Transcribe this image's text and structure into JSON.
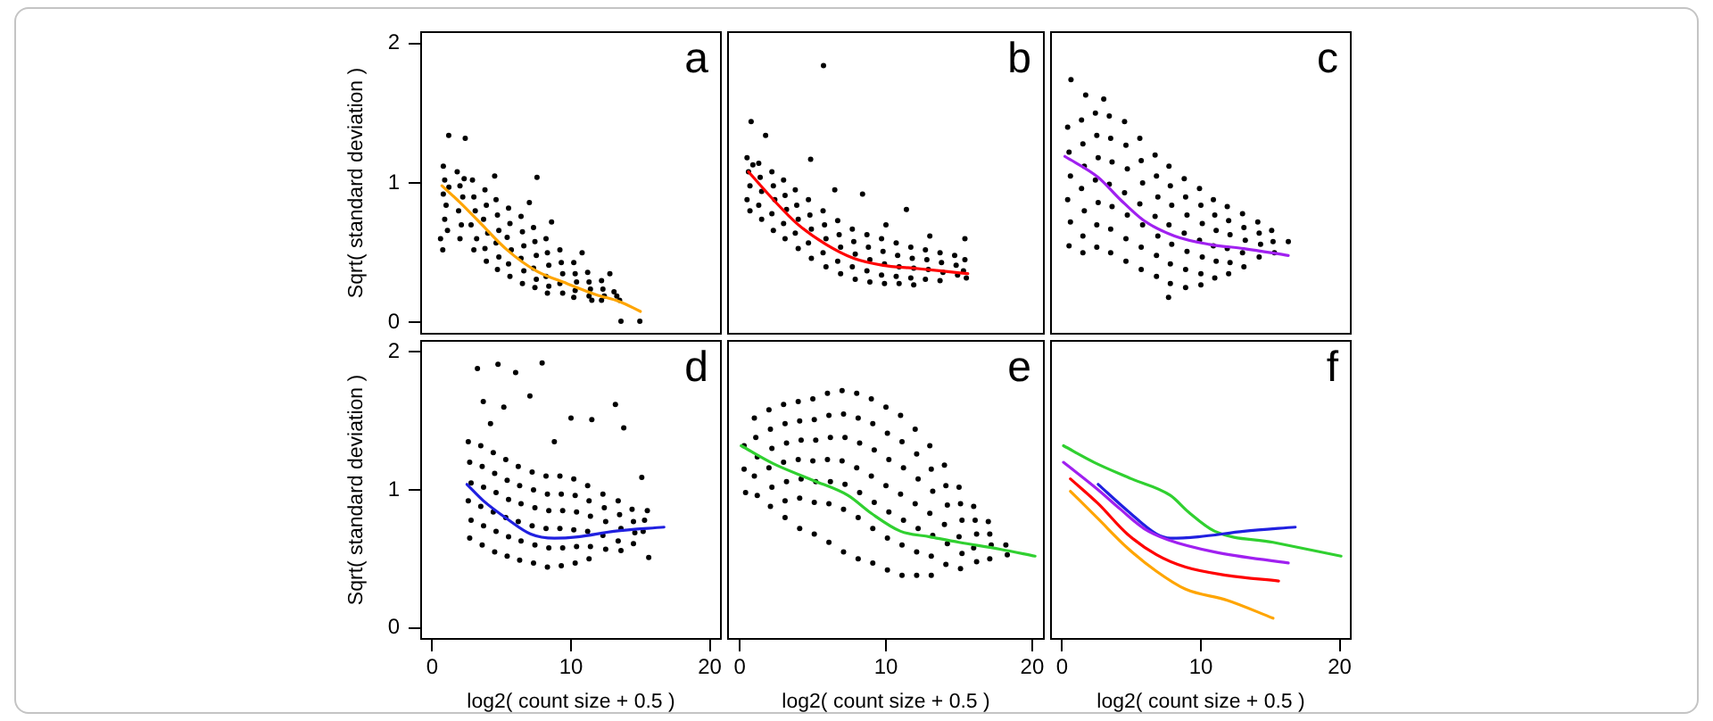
{
  "chart_data": [
    {
      "type": "scatter",
      "annotations": [
        "a"
      ],
      "ylabel": "Sqrt( standard deviation )",
      "xlim": [
        -0.8,
        20.8
      ],
      "ylim": [
        -0.08,
        2.08
      ],
      "yticks": [
        0,
        1,
        2
      ],
      "tick_labels": "y",
      "marker": "circle",
      "series": [
        {
          "color": "#000000",
          "x": [
            0.8,
            0.9,
            0.8,
            1.0,
            0.9,
            1.1,
            0.76,
            1.2,
            1.8,
            2.0,
            2.2,
            1.9,
            2.1,
            2.0,
            2.3,
            2.9,
            3.0,
            3.1,
            2.8,
            3.2,
            3.0,
            3.8,
            3.9,
            3.7,
            4.0,
            3.8,
            3.9,
            4.6,
            4.7,
            4.8,
            4.6,
            4.8,
            4.7,
            5.5,
            5.6,
            5.4,
            5.7,
            5.5,
            5.6,
            6.4,
            6.5,
            6.6,
            6.4,
            6.6,
            6.5,
            7.3,
            7.4,
            7.5,
            7.3,
            7.5,
            7.4,
            8.2,
            8.3,
            8.4,
            8.2,
            8.4,
            8.3,
            9.2,
            9.3,
            9.4,
            9.2,
            9.4,
            10.2,
            10.3,
            10.4,
            10.3,
            10.2,
            11.2,
            11.3,
            11.4,
            11.3,
            11.5,
            12.2,
            12.3,
            12.4,
            12.2,
            13.1,
            13.3,
            13.5,
            1.19,
            2.38,
            4.5,
            7.55,
            13.6,
            14.96,
            0.6,
            7.0,
            8.6,
            10.8,
            12.8
          ],
          "values": [
            1.12,
            1.02,
            0.92,
            0.84,
            0.74,
            0.66,
            0.52,
            0.97,
            1.08,
            0.98,
            0.9,
            0.8,
            0.7,
            0.6,
            1.03,
            1.02,
            0.9,
            0.8,
            0.7,
            0.6,
            0.52,
            0.95,
            0.84,
            0.74,
            0.64,
            0.53,
            0.44,
            0.88,
            0.77,
            0.66,
            0.57,
            0.47,
            0.38,
            0.82,
            0.71,
            0.61,
            0.52,
            0.42,
            0.33,
            0.76,
            0.65,
            0.55,
            0.46,
            0.37,
            0.28,
            0.68,
            0.58,
            0.48,
            0.39,
            0.31,
            0.25,
            0.6,
            0.5,
            0.41,
            0.33,
            0.26,
            0.21,
            0.52,
            0.43,
            0.35,
            0.28,
            0.21,
            0.43,
            0.35,
            0.29,
            0.23,
            0.18,
            0.36,
            0.29,
            0.24,
            0.19,
            0.16,
            0.3,
            0.24,
            0.19,
            0.16,
            0.22,
            0.19,
            0.16,
            1.34,
            1.32,
            1.05,
            1.04,
            0.01,
            0.01,
            0.6,
            0.86,
            0.72,
            0.5,
            0.35
          ]
        },
        {
          "type": "line",
          "marker": "none",
          "color": "#ffa500",
          "x": [
            0.7,
            2.0,
            3.3,
            5.4,
            7.5,
            9.7,
            11.8,
            13.5,
            15.0
          ],
          "values": [
            0.98,
            0.86,
            0.73,
            0.52,
            0.37,
            0.28,
            0.2,
            0.15,
            0.08
          ]
        }
      ]
    },
    {
      "type": "scatter",
      "annotations": [
        "b"
      ],
      "xlim": [
        -0.8,
        20.8
      ],
      "ylim": [
        -0.08,
        2.08
      ],
      "tick_labels": false,
      "marker": "circle",
      "series": [
        {
          "color": "#000000",
          "x": [
            0.5,
            0.6,
            0.7,
            0.5,
            0.7,
            0.9,
            1.3,
            1.4,
            1.5,
            1.3,
            1.5,
            2.2,
            2.3,
            2.4,
            2.2,
            2.3,
            3.0,
            3.1,
            3.2,
            3.0,
            3.1,
            3.8,
            3.9,
            4.0,
            3.8,
            4.0,
            4.7,
            4.8,
            4.9,
            4.7,
            4.9,
            5.7,
            5.8,
            5.9,
            5.7,
            5.9,
            6.7,
            6.8,
            6.9,
            6.7,
            6.9,
            7.7,
            7.8,
            7.9,
            7.7,
            7.9,
            8.7,
            8.8,
            8.9,
            8.7,
            8.9,
            9.7,
            9.8,
            9.9,
            9.7,
            9.9,
            10.7,
            10.8,
            10.9,
            10.7,
            10.9,
            11.7,
            11.8,
            11.9,
            11.7,
            11.9,
            12.7,
            12.8,
            12.9,
            12.7,
            13.7,
            13.8,
            13.9,
            13.7,
            14.7,
            14.8,
            14.9,
            15.4,
            15.3,
            15.5,
            5.73,
            0.78,
            1.77,
            4.85,
            8.4,
            11.4,
            15.4,
            6.5,
            10.0,
            13.0
          ],
          "values": [
            1.18,
            1.08,
            0.98,
            0.88,
            0.8,
            1.13,
            1.14,
            1.04,
            0.94,
            0.84,
            0.74,
            1.08,
            0.98,
            0.88,
            0.78,
            0.66,
            1.02,
            0.91,
            0.81,
            0.71,
            0.6,
            0.95,
            0.84,
            0.74,
            0.64,
            0.53,
            0.88,
            0.77,
            0.67,
            0.57,
            0.46,
            0.8,
            0.7,
            0.6,
            0.5,
            0.4,
            0.73,
            0.63,
            0.54,
            0.44,
            0.35,
            0.67,
            0.58,
            0.49,
            0.4,
            0.31,
            0.63,
            0.54,
            0.45,
            0.37,
            0.29,
            0.6,
            0.51,
            0.42,
            0.34,
            0.28,
            0.57,
            0.48,
            0.4,
            0.33,
            0.28,
            0.54,
            0.46,
            0.39,
            0.32,
            0.27,
            0.52,
            0.45,
            0.38,
            0.31,
            0.5,
            0.43,
            0.36,
            0.3,
            0.48,
            0.41,
            0.34,
            0.45,
            0.37,
            0.32,
            1.84,
            1.44,
            1.34,
            1.17,
            0.92,
            0.81,
            0.6,
            0.95,
            0.7,
            0.62
          ]
        },
        {
          "type": "line",
          "marker": "none",
          "color": "#ff0000",
          "x": [
            0.6,
            2.3,
            3.9,
            5.9,
            7.8,
            9.8,
            11.8,
            13.8,
            15.6
          ],
          "values": [
            1.08,
            0.88,
            0.71,
            0.56,
            0.46,
            0.41,
            0.39,
            0.37,
            0.35
          ]
        }
      ]
    },
    {
      "type": "scatter",
      "annotations": [
        "c"
      ],
      "xlim": [
        -0.8,
        20.8
      ],
      "ylim": [
        -0.08,
        2.08
      ],
      "tick_labels": false,
      "marker": "circle",
      "series": [
        {
          "color": "#000000",
          "x": [
            0.4,
            0.5,
            0.6,
            0.4,
            0.6,
            0.5,
            1.4,
            1.5,
            1.6,
            1.4,
            1.6,
            1.5,
            1.5,
            2.4,
            2.5,
            2.6,
            2.4,
            2.6,
            2.5,
            2.5,
            3.4,
            3.5,
            3.6,
            3.4,
            3.6,
            3.5,
            3.5,
            4.5,
            4.6,
            4.7,
            4.5,
            4.7,
            4.6,
            4.6,
            5.6,
            5.7,
            5.8,
            5.6,
            5.8,
            5.7,
            5.7,
            6.7,
            6.8,
            6.9,
            6.7,
            6.9,
            6.8,
            6.8,
            7.7,
            7.8,
            7.9,
            7.7,
            7.9,
            7.8,
            7.8,
            8.8,
            8.9,
            9.0,
            8.8,
            9.0,
            8.9,
            8.9,
            9.9,
            10.0,
            10.1,
            9.9,
            10.1,
            10.0,
            10.0,
            10.9,
            11.0,
            11.1,
            10.9,
            11.1,
            11.0,
            11.9,
            12.0,
            12.1,
            11.9,
            12.1,
            12.0,
            13.0,
            13.1,
            13.2,
            13.0,
            13.1,
            14.1,
            14.2,
            14.3,
            14.2,
            15.1,
            15.2,
            15.3,
            0.64,
            1.7,
            7.67,
            16.3,
            3.0
          ],
          "values": [
            1.4,
            1.22,
            1.05,
            0.88,
            0.72,
            0.55,
            1.45,
            1.28,
            1.12,
            0.96,
            0.8,
            0.62,
            0.5,
            1.5,
            1.34,
            1.18,
            1.02,
            0.86,
            0.7,
            0.54,
            1.48,
            1.32,
            1.15,
            0.99,
            0.83,
            0.67,
            0.5,
            1.44,
            1.27,
            1.1,
            0.93,
            0.77,
            0.6,
            0.44,
            1.32,
            1.16,
            1.0,
            0.85,
            0.7,
            0.54,
            0.38,
            1.2,
            1.05,
            0.9,
            0.76,
            0.62,
            0.48,
            0.33,
            1.12,
            0.98,
            0.84,
            0.7,
            0.56,
            0.42,
            0.28,
            1.03,
            0.9,
            0.77,
            0.64,
            0.51,
            0.38,
            0.25,
            0.96,
            0.84,
            0.71,
            0.59,
            0.47,
            0.35,
            0.27,
            0.88,
            0.77,
            0.66,
            0.55,
            0.44,
            0.32,
            0.83,
            0.73,
            0.63,
            0.53,
            0.43,
            0.35,
            0.78,
            0.68,
            0.59,
            0.5,
            0.4,
            0.72,
            0.64,
            0.56,
            0.47,
            0.66,
            0.58,
            0.5,
            1.74,
            1.63,
            0.18,
            0.58,
            1.6
          ]
        },
        {
          "type": "line",
          "marker": "none",
          "color": "#a020f0",
          "x": [
            0.2,
            2.6,
            4.2,
            5.9,
            8.1,
            10.6,
            13.1,
            16.3
          ],
          "values": [
            1.19,
            1.04,
            0.88,
            0.73,
            0.62,
            0.56,
            0.53,
            0.48
          ]
        }
      ]
    },
    {
      "type": "scatter",
      "annotations": [
        "d"
      ],
      "xlabel": "log2( count size + 0.5 )",
      "ylabel": "Sqrt( standard deviation )",
      "xlim": [
        -0.8,
        20.8
      ],
      "ylim": [
        -0.08,
        2.08
      ],
      "xticks": [
        0,
        10,
        20
      ],
      "yticks": [
        0,
        1,
        2
      ],
      "marker": "circle",
      "series": [
        {
          "color": "#000000",
          "x": [
            2.6,
            2.7,
            2.8,
            2.6,
            2.8,
            2.7,
            3.5,
            3.6,
            3.7,
            3.5,
            3.7,
            3.6,
            4.4,
            4.5,
            4.6,
            4.4,
            4.6,
            4.5,
            5.3,
            5.4,
            5.5,
            5.3,
            5.5,
            5.4,
            6.2,
            6.3,
            6.4,
            6.2,
            6.4,
            6.3,
            7.2,
            7.3,
            7.4,
            7.2,
            7.4,
            7.3,
            8.2,
            8.3,
            8.4,
            8.2,
            8.4,
            8.3,
            9.2,
            9.3,
            9.4,
            9.2,
            9.4,
            9.3,
            10.2,
            10.3,
            10.4,
            10.2,
            10.4,
            10.3,
            11.2,
            11.3,
            11.4,
            11.2,
            11.4,
            11.3,
            12.3,
            12.4,
            12.5,
            12.3,
            12.5,
            13.4,
            13.5,
            13.6,
            13.4,
            13.6,
            14.4,
            14.5,
            14.6,
            14.5,
            15.3,
            15.2,
            3.26,
            4.74,
            6.01,
            7.92,
            7.04,
            5.16,
            3.68,
            11.5,
            13.2,
            13.8,
            10.0,
            15.1,
            15.5,
            15.6,
            4.2,
            8.8
          ],
          "values": [
            1.35,
            1.2,
            1.05,
            0.92,
            0.78,
            0.65,
            1.32,
            1.17,
            1.02,
            0.88,
            0.74,
            0.6,
            1.27,
            1.12,
            0.98,
            0.84,
            0.7,
            0.55,
            1.22,
            1.07,
            0.93,
            0.8,
            0.66,
            0.52,
            1.17,
            1.03,
            0.9,
            0.77,
            0.63,
            0.49,
            1.13,
            1.0,
            0.87,
            0.74,
            0.6,
            0.47,
            1.1,
            0.97,
            0.85,
            0.72,
            0.58,
            0.44,
            1.1,
            0.97,
            0.85,
            0.72,
            0.58,
            0.45,
            1.08,
            0.96,
            0.84,
            0.71,
            0.59,
            0.47,
            1.03,
            0.92,
            0.81,
            0.7,
            0.59,
            0.5,
            0.97,
            0.87,
            0.77,
            0.67,
            0.57,
            0.92,
            0.82,
            0.72,
            0.63,
            0.56,
            0.86,
            0.77,
            0.69,
            0.61,
            0.78,
            0.7,
            1.88,
            1.91,
            1.85,
            1.92,
            1.68,
            1.6,
            1.64,
            1.51,
            1.62,
            1.45,
            1.52,
            1.09,
            0.85,
            0.51,
            1.48,
            1.35
          ]
        },
        {
          "type": "line",
          "marker": "none",
          "color": "#2020e0",
          "x": [
            2.5,
            3.7,
            5.4,
            7.1,
            8.8,
            10.5,
            13.1,
            16.7
          ],
          "values": [
            1.04,
            0.92,
            0.79,
            0.68,
            0.65,
            0.66,
            0.7,
            0.73
          ]
        }
      ]
    },
    {
      "type": "scatter",
      "annotations": [
        "e"
      ],
      "xlabel": "log2( count size + 0.5 )",
      "xlim": [
        -0.8,
        20.8
      ],
      "ylim": [
        -0.08,
        2.08
      ],
      "xticks": [
        0,
        10,
        20
      ],
      "tick_labels": "x",
      "marker": "circle",
      "series": [
        {
          "color": "#000000",
          "x": [
            0.3,
            0.3,
            0.4,
            1.0,
            1.1,
            1.2,
            1.0,
            1.2,
            2.0,
            2.1,
            2.2,
            2.0,
            2.2,
            2.1,
            3.0,
            3.1,
            3.2,
            3.0,
            3.2,
            3.1,
            3.1,
            4.0,
            4.1,
            4.2,
            4.0,
            4.2,
            4.1,
            4.1,
            5.0,
            5.1,
            5.2,
            5.0,
            5.2,
            5.1,
            5.1,
            6.0,
            6.1,
            6.2,
            6.0,
            6.2,
            6.1,
            6.1,
            7.0,
            7.1,
            7.2,
            7.0,
            7.2,
            7.1,
            7.1,
            8.0,
            8.1,
            8.2,
            8.0,
            8.2,
            8.1,
            8.1,
            9.0,
            9.1,
            9.2,
            9.0,
            9.2,
            9.1,
            9.1,
            10.0,
            10.1,
            10.2,
            10.0,
            10.2,
            10.1,
            10.1,
            11.0,
            11.1,
            11.2,
            11.0,
            11.2,
            11.1,
            11.1,
            12.0,
            12.1,
            12.2,
            12.0,
            12.2,
            12.1,
            12.1,
            13.0,
            13.1,
            13.2,
            13.0,
            13.2,
            13.1,
            13.1,
            14.0,
            14.1,
            14.2,
            14.0,
            14.2,
            14.1,
            15.0,
            15.1,
            15.2,
            15.0,
            15.2,
            15.1,
            16.0,
            16.1,
            16.2,
            16.0,
            16.2,
            17.0,
            17.1,
            17.2,
            17.1,
            18.2,
            18.3
          ],
          "values": [
            1.32,
            1.15,
            0.98,
            1.52,
            1.38,
            1.24,
            1.1,
            0.96,
            1.58,
            1.44,
            1.3,
            1.16,
            1.02,
            0.88,
            1.62,
            1.48,
            1.34,
            1.2,
            1.06,
            0.92,
            0.8,
            1.64,
            1.5,
            1.36,
            1.22,
            1.08,
            0.94,
            0.72,
            1.66,
            1.51,
            1.36,
            1.21,
            1.06,
            0.91,
            0.68,
            1.7,
            1.54,
            1.38,
            1.22,
            1.06,
            0.9,
            0.62,
            1.72,
            1.55,
            1.38,
            1.21,
            1.04,
            0.86,
            0.55,
            1.7,
            1.52,
            1.34,
            1.16,
            0.98,
            0.8,
            0.5,
            1.66,
            1.48,
            1.29,
            1.1,
            0.91,
            0.72,
            0.47,
            1.6,
            1.41,
            1.22,
            1.03,
            0.84,
            0.65,
            0.42,
            1.54,
            1.35,
            1.16,
            0.97,
            0.78,
            0.6,
            0.38,
            1.44,
            1.26,
            1.08,
            0.9,
            0.72,
            0.55,
            0.38,
            1.32,
            1.15,
            0.99,
            0.83,
            0.67,
            0.52,
            0.38,
            1.18,
            1.03,
            0.89,
            0.75,
            0.61,
            0.46,
            1.02,
            0.9,
            0.78,
            0.66,
            0.54,
            0.43,
            0.88,
            0.78,
            0.68,
            0.58,
            0.48,
            0.77,
            0.68,
            0.6,
            0.5,
            0.6,
            0.53
          ]
        },
        {
          "type": "line",
          "marker": "none",
          "color": "#30d030",
          "x": [
            0.1,
            2.3,
            5.0,
            7.4,
            9.0,
            11.0,
            13.0,
            15.0,
            17.8,
            20.2
          ],
          "values": [
            1.32,
            1.19,
            1.07,
            0.96,
            0.83,
            0.7,
            0.66,
            0.62,
            0.57,
            0.52
          ]
        }
      ]
    },
    {
      "type": "line",
      "annotations": [
        "f"
      ],
      "xlabel": "log2( count size + 0.5 )",
      "xlim": [
        -0.8,
        20.8
      ],
      "ylim": [
        -0.08,
        2.08
      ],
      "xticks": [
        0,
        10,
        20
      ],
      "tick_labels": "x",
      "marker": "none",
      "series": [
        {
          "color": "#ffa500",
          "x": [
            0.6,
            2.6,
            4.7,
            6.8,
            8.9,
            11.9,
            15.2
          ],
          "values": [
            0.99,
            0.79,
            0.58,
            0.41,
            0.28,
            0.2,
            0.07
          ]
        },
        {
          "color": "#ff0000",
          "x": [
            0.6,
            2.6,
            4.7,
            6.8,
            8.9,
            11.9,
            15.6
          ],
          "values": [
            1.08,
            0.9,
            0.68,
            0.53,
            0.44,
            0.38,
            0.34
          ]
        },
        {
          "color": "#a020f0",
          "x": [
            0.1,
            2.6,
            4.2,
            5.9,
            7.6,
            11.0,
            16.3
          ],
          "values": [
            1.2,
            1.0,
            0.86,
            0.72,
            0.64,
            0.55,
            0.47
          ]
        },
        {
          "color": "#2020e0",
          "x": [
            2.6,
            4.7,
            6.8,
            7.8,
            9.8,
            13.1,
            16.8
          ],
          "values": [
            1.04,
            0.85,
            0.68,
            0.65,
            0.66,
            0.7,
            0.73
          ]
        },
        {
          "color": "#30d030",
          "x": [
            0.1,
            2.3,
            5.0,
            7.8,
            9.1,
            11.0,
            15.2,
            20.1
          ],
          "values": [
            1.32,
            1.2,
            1.08,
            0.96,
            0.84,
            0.7,
            0.62,
            0.52
          ]
        }
      ]
    }
  ]
}
